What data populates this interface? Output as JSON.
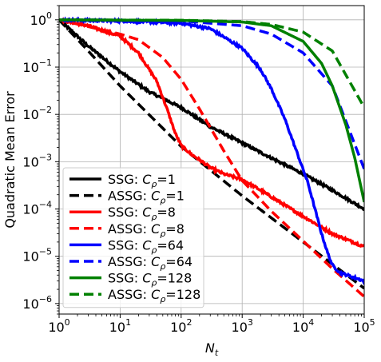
{
  "chart_data": {
    "type": "line",
    "title": "",
    "xlabel": "N",
    "xlabel_subscript": "t",
    "ylabel": "Quadratic Mean Error",
    "xscale": "log",
    "yscale": "log",
    "xlim": [
      1,
      100000
    ],
    "ylim": [
      6e-07,
      2
    ],
    "grid": true,
    "legend_location": "lower-left",
    "x_ticks": [
      {
        "base": "10",
        "exp": "0"
      },
      {
        "base": "10",
        "exp": "1"
      },
      {
        "base": "10",
        "exp": "2"
      },
      {
        "base": "10",
        "exp": "3"
      },
      {
        "base": "10",
        "exp": "4"
      },
      {
        "base": "10",
        "exp": "5"
      }
    ],
    "y_ticks": [
      {
        "base": "10",
        "exp": "0"
      },
      {
        "base": "10",
        "exp": "−1"
      },
      {
        "base": "10",
        "exp": "−2"
      },
      {
        "base": "10",
        "exp": "−3"
      },
      {
        "base": "10",
        "exp": "−4"
      },
      {
        "base": "10",
        "exp": "−5"
      },
      {
        "base": "10",
        "exp": "−6"
      }
    ],
    "series": [
      {
        "name": "SSG: C_ρ=1",
        "legend_prefix": "SSG: ",
        "legend_sym": "C",
        "legend_sub": "ρ",
        "legend_suffix": "=1",
        "color": "#000000",
        "dash": "solid",
        "noisy": true,
        "x": [
          1,
          3,
          10,
          30,
          100,
          300,
          1000,
          3000,
          10000,
          30000,
          100000
        ],
        "y": [
          1.0,
          0.28,
          0.08,
          0.03,
          0.014,
          0.0055,
          0.0025,
          0.0012,
          0.00055,
          0.00025,
          0.0001
        ]
      },
      {
        "name": "ASSG: C_ρ=1",
        "legend_prefix": "ASSG: ",
        "legend_sym": "C",
        "legend_sub": "ρ",
        "legend_suffix": "=1",
        "color": "#000000",
        "dash": "dashed",
        "noisy": false,
        "x": [
          1,
          3,
          10,
          100,
          1000,
          10000,
          100000
        ],
        "y": [
          1.0,
          0.22,
          0.04,
          0.0021,
          0.00019,
          2e-05,
          2.1e-06
        ]
      },
      {
        "name": "SSG: C_ρ=8",
        "legend_prefix": "SSG: ",
        "legend_sym": "C",
        "legend_sub": "ρ",
        "legend_suffix": "=8",
        "color": "#ff0000",
        "dash": "solid",
        "noisy": true,
        "x": [
          1,
          3,
          10,
          20,
          40,
          60,
          80,
          100,
          150,
          200,
          300,
          500,
          1000,
          2000,
          5000,
          10000,
          30000,
          100000
        ],
        "y": [
          1.0,
          0.75,
          0.45,
          0.2,
          0.05,
          0.012,
          0.004,
          0.0022,
          0.0014,
          0.0011,
          0.00075,
          0.00055,
          0.00042,
          0.00025,
          0.00012,
          7e-05,
          3e-05,
          1.6e-05
        ]
      },
      {
        "name": "ASSG: C_ρ=8",
        "legend_prefix": "ASSG: ",
        "legend_sym": "C",
        "legend_sub": "ρ",
        "legend_suffix": "=8",
        "color": "#ff0000",
        "dash": "dashed",
        "noisy": false,
        "x": [
          1,
          10,
          20,
          50,
          100,
          200,
          500,
          1000,
          3000,
          10000,
          30000,
          100000
        ],
        "y": [
          1.0,
          0.5,
          0.38,
          0.16,
          0.055,
          0.013,
          0.0017,
          0.0004,
          9e-05,
          2.1e-05,
          5.5e-06,
          1.4e-06
        ]
      },
      {
        "name": "SSG: C_ρ=64",
        "legend_prefix": "SSG: ",
        "legend_sym": "C",
        "legend_sub": "ρ",
        "legend_suffix": "=64",
        "color": "#0000ff",
        "dash": "solid",
        "noisy": true,
        "x": [
          1,
          10,
          100,
          300,
          1000,
          2000,
          3000,
          5000,
          8000,
          12000,
          15000,
          20000,
          25000,
          30000,
          40000,
          100000
        ],
        "y": [
          1.0,
          0.95,
          0.85,
          0.65,
          0.25,
          0.09,
          0.035,
          0.008,
          0.0015,
          0.00035,
          0.00012,
          3e-05,
          1.2e-05,
          6.5e-06,
          4.5e-06,
          3e-06
        ]
      },
      {
        "name": "ASSG: C_ρ=64",
        "legend_prefix": "ASSG: ",
        "legend_sym": "C",
        "legend_sub": "ρ",
        "legend_suffix": "=64",
        "color": "#0000ff",
        "dash": "dashed",
        "noisy": false,
        "x": [
          1,
          100,
          1000,
          3000,
          10000,
          30000,
          100000
        ],
        "y": [
          1.0,
          0.95,
          0.75,
          0.5,
          0.2,
          0.04,
          0.0007
        ]
      },
      {
        "name": "SSG: C_ρ=128",
        "legend_prefix": "SSG: ",
        "legend_sym": "C",
        "legend_sub": "ρ",
        "legend_suffix": "=128",
        "color": "#008000",
        "dash": "solid",
        "noisy": false,
        "x": [
          1,
          100,
          1000,
          3000,
          10000,
          20000,
          30000,
          50000,
          70000,
          100000
        ],
        "y": [
          1.0,
          0.97,
          0.9,
          0.75,
          0.35,
          0.12,
          0.04,
          0.006,
          0.0012,
          0.00014
        ]
      },
      {
        "name": "ASSG: C_ρ=128",
        "legend_prefix": "ASSG: ",
        "legend_sym": "C",
        "legend_sub": "ρ",
        "legend_suffix": "=128",
        "color": "#008000",
        "dash": "dashed",
        "noisy": false,
        "x": [
          1,
          100,
          1000,
          3000,
          10000,
          30000,
          100000
        ],
        "y": [
          1.0,
          0.98,
          0.92,
          0.8,
          0.55,
          0.22,
          0.014
        ]
      }
    ]
  }
}
